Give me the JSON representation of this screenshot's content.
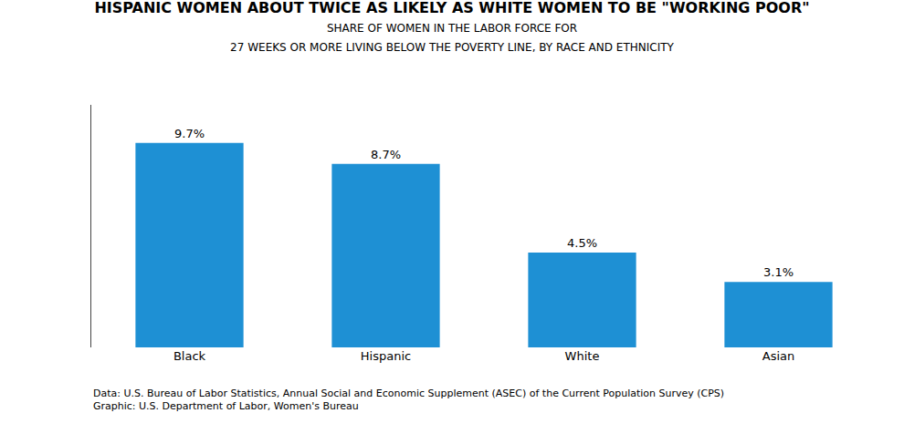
{
  "chart_data": {
    "type": "bar",
    "title": "HISPANIC WOMEN ABOUT TWICE AS LIKELY AS WHITE WOMEN TO BE \"WORKING POOR\"",
    "subtitle": [
      "SHARE OF WOMEN IN THE LABOR FORCE FOR",
      "27 WEEKS OR MORE LIVING BELOW THE POVERTY LINE, BY RACE AND ETHNICITY"
    ],
    "categories": [
      "Black",
      "Hispanic",
      "White",
      "Asian"
    ],
    "values": [
      9.7,
      8.7,
      4.5,
      3.1
    ],
    "value_labels": [
      "9.7%",
      "8.7%",
      "4.5%",
      "3.1%"
    ],
    "data_labels": true,
    "color": "#1E90D4",
    "ylim": [
      0,
      11.5
    ],
    "tick_labels": "x",
    "grid": false,
    "annotations": [
      "Data: U.S. Bureau of Labor Statistics, Annual Social and Economic Supplement (ASEC) of the Current Population Survey (CPS)\nGraphic: U.S. Department of Labor, Women's Bureau"
    ]
  }
}
